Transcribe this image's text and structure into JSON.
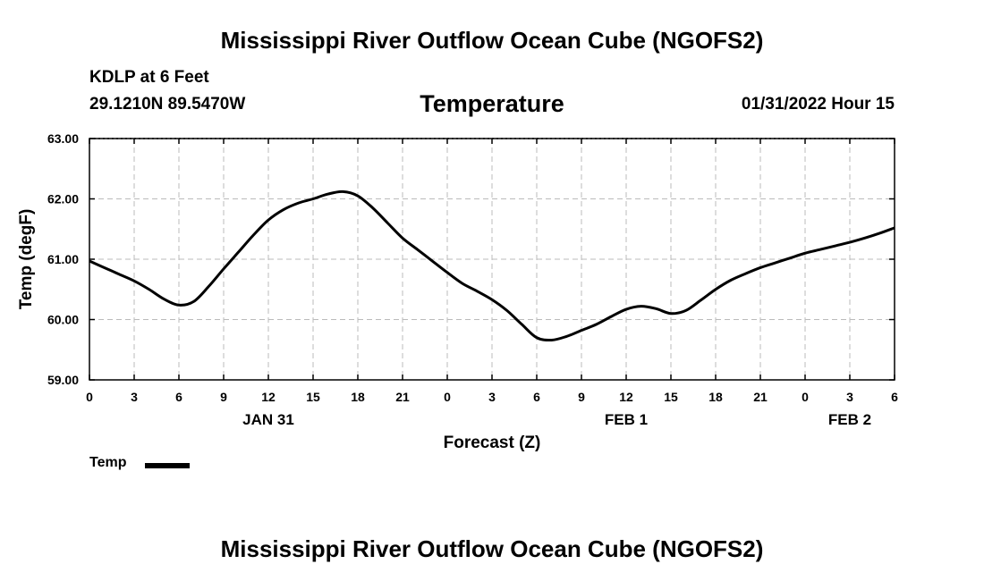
{
  "header": {
    "title": "Mississippi River Outflow Ocean Cube (NGOFS2)",
    "station": "KDLP at 6 Feet",
    "coordinates": "29.1210N  89.5470W",
    "date_hour": "01/31/2022 Hour 15"
  },
  "footer": {
    "title": "Mississippi River Outflow Ocean Cube (NGOFS2)"
  },
  "legend": {
    "label": "Temp"
  },
  "colors": {
    "line": "#000000",
    "grid": "#bbbbbb"
  },
  "chart_data": {
    "type": "line",
    "title": "Temperature",
    "xlabel": "Forecast (Z)",
    "ylabel": "Temp (degF)",
    "xlim": [
      0,
      54
    ],
    "ylim": [
      59.0,
      63.0
    ],
    "ytick_values": [
      59.0,
      60.0,
      61.0,
      62.0,
      63.0
    ],
    "ytick_labels": [
      "59.00",
      "60.00",
      "61.00",
      "62.00",
      "63.00"
    ],
    "xtick_values": [
      0,
      3,
      6,
      9,
      12,
      15,
      18,
      21,
      24,
      27,
      30,
      33,
      36,
      39,
      42,
      45,
      48,
      51,
      54
    ],
    "xtick_labels": [
      "0",
      "3",
      "6",
      "9",
      "12",
      "15",
      "18",
      "21",
      "0",
      "3",
      "6",
      "9",
      "12",
      "15",
      "18",
      "21",
      "0",
      "3",
      "6"
    ],
    "date_labels": [
      {
        "x": 12,
        "label": "JAN 31"
      },
      {
        "x": 36,
        "label": "FEB 1"
      },
      {
        "x": 51,
        "label": "FEB 2"
      }
    ],
    "grid": true,
    "legend_position": "bottom-left",
    "series": [
      {
        "name": "Temp",
        "x": [
          0,
          1,
          2,
          3,
          4,
          5,
          6,
          7,
          8,
          9,
          10,
          11,
          12,
          13,
          14,
          15,
          16,
          17,
          18,
          19,
          20,
          21,
          22,
          23,
          24,
          25,
          26,
          27,
          28,
          29,
          30,
          31,
          32,
          33,
          34,
          35,
          36,
          37,
          38,
          39,
          40,
          41,
          42,
          43,
          44,
          45,
          46,
          47,
          48,
          49,
          50,
          51,
          52,
          53,
          54
        ],
        "y": [
          60.97,
          60.86,
          60.75,
          60.64,
          60.5,
          60.34,
          60.24,
          60.3,
          60.55,
          60.84,
          61.12,
          61.4,
          61.65,
          61.82,
          61.93,
          62.0,
          62.08,
          62.12,
          62.05,
          61.85,
          61.6,
          61.35,
          61.16,
          60.97,
          60.78,
          60.6,
          60.47,
          60.33,
          60.15,
          59.92,
          59.7,
          59.66,
          59.72,
          59.82,
          59.92,
          60.05,
          60.17,
          60.22,
          60.18,
          60.1,
          60.15,
          60.32,
          60.5,
          60.65,
          60.76,
          60.86,
          60.94,
          61.02,
          61.1,
          61.16,
          61.22,
          61.28,
          61.35,
          61.43,
          61.52
        ]
      }
    ]
  }
}
